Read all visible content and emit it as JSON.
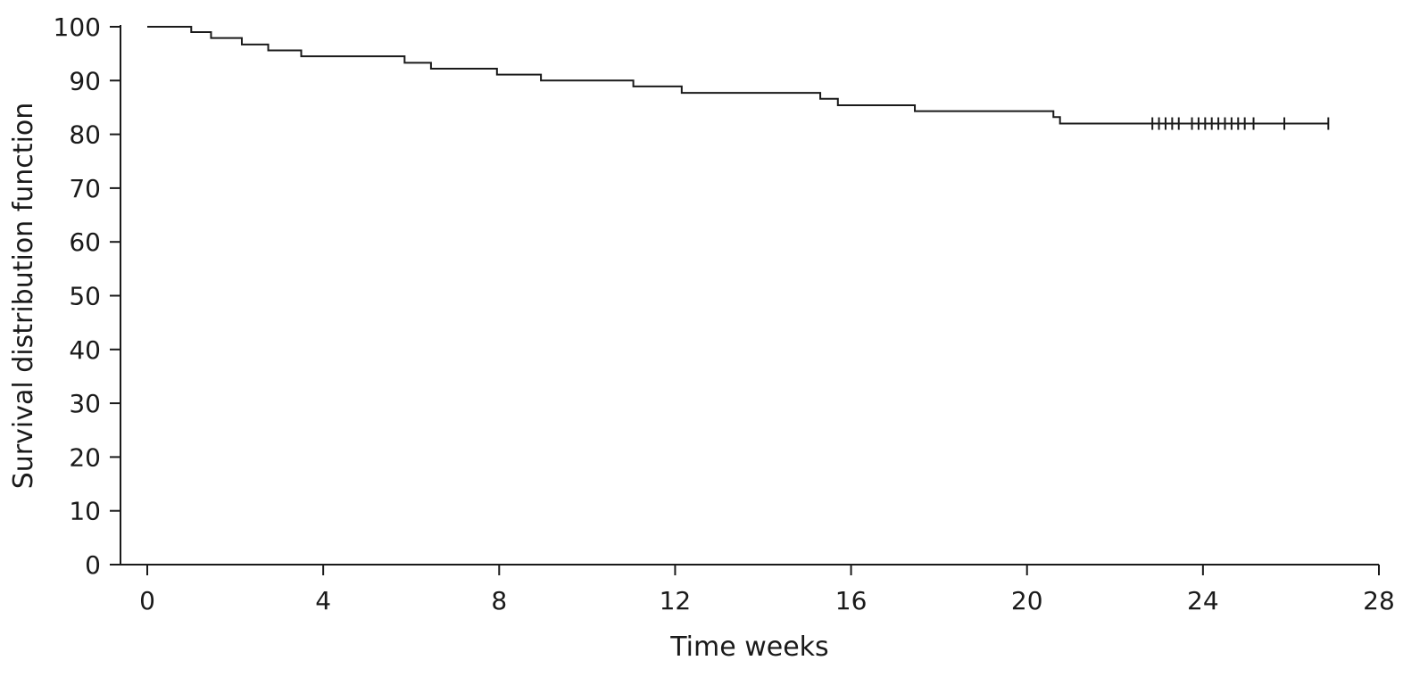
{
  "chart_data": {
    "type": "line",
    "subtype": "kaplan-meier-step",
    "title": "",
    "xlabel": "Time weeks",
    "ylabel": "Survival distribution function",
    "xlim": [
      0,
      28
    ],
    "ylim": [
      0,
      100
    ],
    "x_ticks": [
      0,
      4,
      8,
      12,
      16,
      20,
      24,
      28
    ],
    "y_ticks": [
      0,
      10,
      20,
      30,
      40,
      50,
      60,
      70,
      80,
      90,
      100
    ],
    "grid": false,
    "legend": "none",
    "line_color": "#1a1a1a",
    "series": [
      {
        "x": [
          0,
          1.0,
          1.45,
          2.15,
          2.75,
          3.5,
          5.85,
          6.45,
          7.95,
          8.95,
          11.05,
          12.15,
          15.3,
          15.7,
          17.45,
          20.6,
          20.75,
          26.85
        ],
        "y": [
          100,
          99.0,
          97.9,
          96.7,
          95.6,
          94.5,
          93.3,
          92.2,
          91.1,
          90.0,
          88.9,
          87.7,
          86.6,
          85.4,
          84.3,
          83.2,
          82.0,
          82.0
        ]
      }
    ],
    "censored": {
      "x": [
        22.85,
        23.0,
        23.15,
        23.3,
        23.45,
        23.75,
        23.9,
        24.05,
        24.2,
        24.35,
        24.5,
        24.65,
        24.8,
        24.95,
        25.15,
        25.85,
        26.85
      ],
      "y": 82.0
    }
  }
}
